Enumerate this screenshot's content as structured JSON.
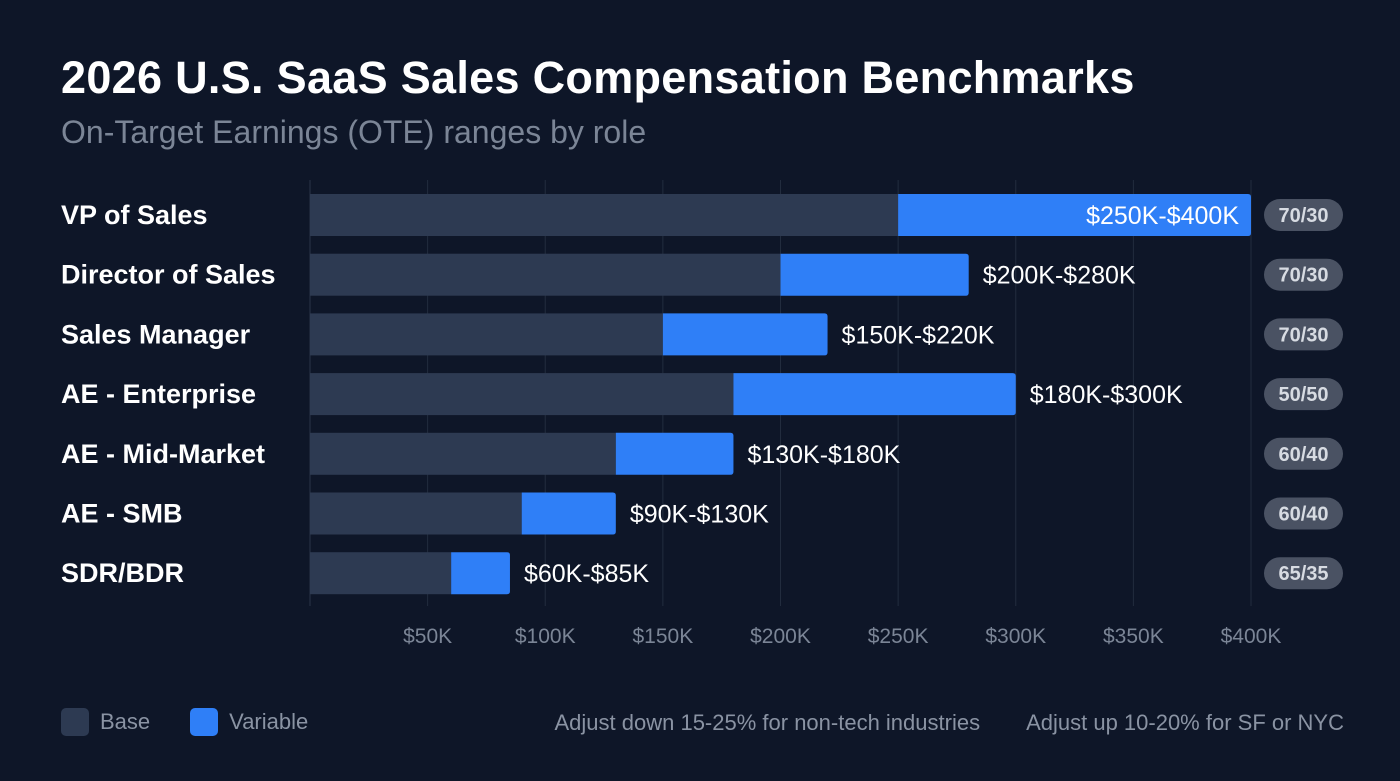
{
  "chart_data": {
    "type": "bar",
    "stacked": true,
    "orientation": "horizontal",
    "title": "2026 U.S. SaaS Sales Compensation Benchmarks",
    "subtitle": "On-Target Earnings (OTE) ranges by role",
    "categories": [
      "VP of Sales",
      "Director of Sales",
      "Sales Manager",
      "AE - Enterprise",
      "AE - Mid-Market",
      "AE - SMB",
      "SDR/BDR"
    ],
    "ranges": [
      {
        "low": 250,
        "high": 400,
        "label": "$250K-$400K",
        "split": "70/30"
      },
      {
        "low": 200,
        "high": 280,
        "label": "$200K-$280K",
        "split": "70/30"
      },
      {
        "low": 150,
        "high": 220,
        "label": "$150K-$220K",
        "split": "70/30"
      },
      {
        "low": 180,
        "high": 300,
        "label": "$180K-$300K",
        "split": "50/50"
      },
      {
        "low": 130,
        "high": 180,
        "label": "$130K-$180K",
        "split": "60/40"
      },
      {
        "low": 90,
        "high": 130,
        "label": "$90K-$130K",
        "split": "60/40"
      },
      {
        "low": 60,
        "high": 85,
        "label": "$60K-$85K",
        "split": "65/35"
      }
    ],
    "series": [
      {
        "name": "Base",
        "color": "#2d3a52"
      },
      {
        "name": "Variable",
        "color": "#2f7ff7"
      }
    ],
    "xlim": [
      0,
      400
    ],
    "xticks": [
      50,
      100,
      150,
      200,
      250,
      300,
      350,
      400
    ],
    "xtick_labels": [
      "$50K",
      "$100K",
      "$150K",
      "$200K",
      "$250K",
      "$300K",
      "$350K",
      "$400K"
    ],
    "grid": true,
    "legend_position": "bottom-left",
    "notes": [
      "Adjust down 15-25% for non-tech industries",
      "Adjust up 10-20% for SF or NYC"
    ]
  }
}
